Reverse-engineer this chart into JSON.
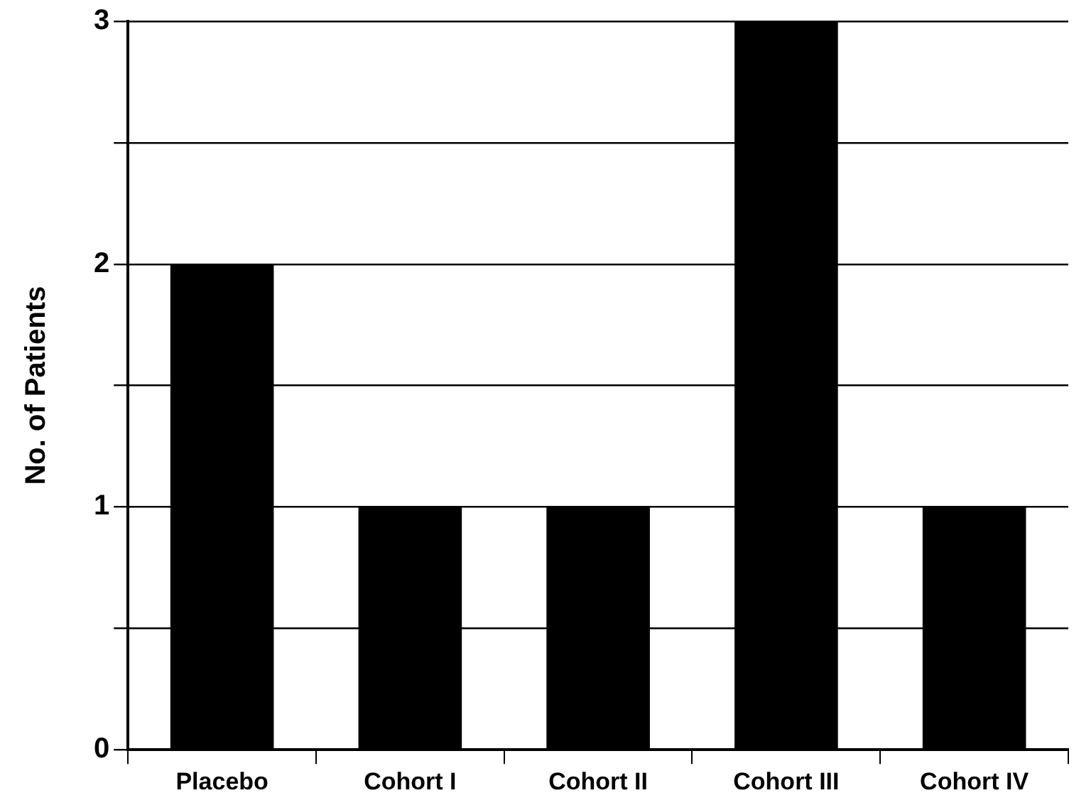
{
  "chart_data": {
    "type": "bar",
    "ylabel": "No. of Patients",
    "categories": [
      "Placebo",
      "Cohort I",
      "Cohort II",
      "Cohort III",
      "Cohort IV"
    ],
    "values": [
      2,
      1,
      1,
      3,
      1
    ],
    "color": "#000000",
    "ylim": [
      0,
      3
    ],
    "yticks": [
      0,
      {
        "value": 0.5,
        "label": null
      },
      1,
      {
        "value": 1.5,
        "label": null
      },
      2,
      {
        "value": 2.5,
        "label": null
      },
      3
    ],
    "grid": true
  }
}
